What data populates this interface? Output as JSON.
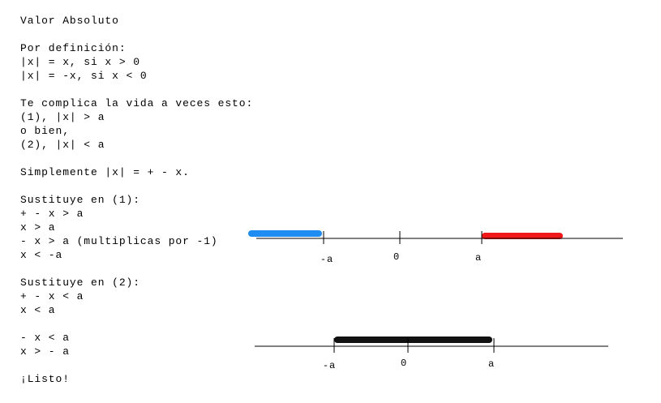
{
  "paragraphs": [
    [
      "Valor Absoluto"
    ],
    [
      "Por definición:",
      "|x| = x, si x > 0",
      "|x| = -x, si x < 0"
    ],
    [
      "Te complica la vida a veces esto:",
      "(1), |x| > a",
      "o bien,",
      "(2), |x| < a"
    ],
    [
      "Simplemente |x| = + - x."
    ],
    [
      "Sustituye en (1):",
      "+ - x > a",
      "x > a",
      "- x > a (multiplicas por -1)",
      "x < -a"
    ],
    [
      "Sustituye en (2):",
      "+ - x < a",
      "x < a"
    ],
    [
      "- x < a",
      "x > - a"
    ],
    [
      "¡Listo!"
    ]
  ],
  "number_lines": [
    {
      "labels": [
        "-a",
        "0",
        "a"
      ]
    },
    {
      "labels": [
        "-a",
        "0",
        "a"
      ]
    }
  ]
}
